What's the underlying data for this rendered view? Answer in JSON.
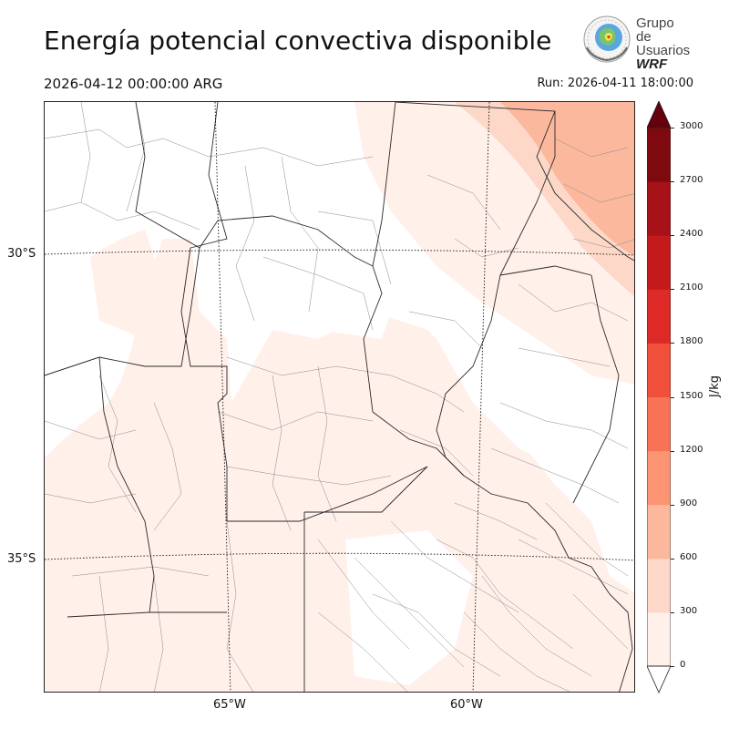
{
  "header": {
    "title": "Energía potencial convectiva disponible",
    "valid_time": "2026-04-12 00:00:00 ARG",
    "run_time": "Run: 2026-04-11 18:00:00"
  },
  "logo": {
    "line1": "Grupo de",
    "line2": "Usuarios",
    "line3": "WRF"
  },
  "map": {
    "lat_labels": [
      "30°S",
      "35°S"
    ],
    "lon_labels": [
      "65°W",
      "60°W"
    ],
    "icons": [
      "globe-logo-icon"
    ]
  },
  "colorbar": {
    "unit": "J/kg",
    "ticks": [
      "0",
      "300",
      "600",
      "900",
      "1200",
      "1500",
      "1800",
      "2100",
      "2400",
      "2700",
      "3000"
    ],
    "colors": [
      "#fff0ea",
      "#fdd7c8",
      "#fcb89d",
      "#fc9474",
      "#f87356",
      "#ef4f3b",
      "#de2a27",
      "#c41a1c",
      "#a71218",
      "#7e0a10"
    ],
    "over_color": "#67000d",
    "under_color": "#ffffff",
    "extend": "both"
  }
}
